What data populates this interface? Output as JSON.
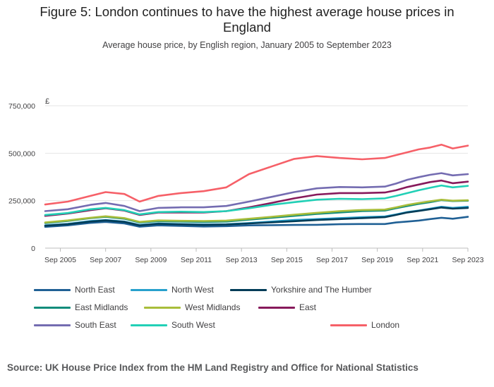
{
  "title": "Figure 5: London continues to have the highest average house prices in England",
  "subtitle": "Average house price, by English region, January 2005 to September 2023",
  "source": "Source: UK House Price Index from the HM Land Registry and Office for National Statistics",
  "chart_data": {
    "type": "line",
    "y_unit_label": "£",
    "ylim": [
      0,
      750000
    ],
    "y_ticks": [
      0,
      250000,
      500000,
      750000
    ],
    "y_tick_labels": [
      "0",
      "250,000",
      "500,000",
      "750,000"
    ],
    "xlim": [
      2005.0,
      2023.67
    ],
    "x_ticks": [
      2005.67,
      2007.67,
      2009.67,
      2011.67,
      2013.67,
      2015.67,
      2017.67,
      2019.67,
      2021.67,
      2023.67
    ],
    "x_tick_labels": [
      "Sep 2005",
      "Sep 2007",
      "Sep 2009",
      "Sep 2011",
      "Sep 2013",
      "Sep 2015",
      "Sep 2017",
      "Sep 2019",
      "Sep 2021",
      "Sep 2023"
    ],
    "grid": "horizontal",
    "legend_position": "bottom",
    "x": [
      2005.0,
      2006.0,
      2007.0,
      2007.67,
      2008.5,
      2009.17,
      2010.0,
      2011.0,
      2012.0,
      2013.0,
      2014.0,
      2015.0,
      2016.0,
      2017.0,
      2018.0,
      2019.0,
      2020.0,
      2020.5,
      2021.0,
      2021.5,
      2022.0,
      2022.5,
      2023.0,
      2023.67
    ],
    "series": [
      {
        "name": "North East",
        "color": "#206095",
        "values": [
          112000,
          120000,
          133000,
          138000,
          130000,
          113000,
          120000,
          117000,
          114000,
          116000,
          120000,
          121000,
          122000,
          123000,
          126000,
          127000,
          127000,
          135000,
          140000,
          145000,
          153000,
          160000,
          155000,
          165000
        ]
      },
      {
        "name": "North West",
        "color": "#27a0cc",
        "values": [
          120000,
          128000,
          143000,
          148000,
          140000,
          122000,
          130000,
          127000,
          125000,
          126000,
          132000,
          140000,
          148000,
          153000,
          158000,
          163000,
          167000,
          178000,
          190000,
          198000,
          208000,
          218000,
          212000,
          218000
        ]
      },
      {
        "name": "Yorkshire and The Humber",
        "color": "#003c57",
        "values": [
          118000,
          126000,
          140000,
          146000,
          138000,
          120000,
          128000,
          125000,
          122000,
          124000,
          130000,
          136000,
          142000,
          148000,
          153000,
          158000,
          163000,
          175000,
          188000,
          196000,
          205000,
          214000,
          208000,
          212000
        ]
      },
      {
        "name": "East Midlands",
        "color": "#118c7b",
        "values": [
          132000,
          143000,
          158000,
          165000,
          155000,
          135000,
          142000,
          140000,
          138000,
          140000,
          150000,
          160000,
          170000,
          180000,
          188000,
          195000,
          198000,
          210000,
          222000,
          233000,
          242000,
          253000,
          248000,
          250000
        ]
      },
      {
        "name": "West Midlands",
        "color": "#a8bd3a",
        "values": [
          135000,
          146000,
          160000,
          168000,
          158000,
          138000,
          146000,
          144000,
          143000,
          145000,
          155000,
          165000,
          176000,
          186000,
          195000,
          201000,
          203000,
          215000,
          228000,
          238000,
          247000,
          255000,
          250000,
          252000
        ]
      },
      {
        "name": "East",
        "color": "#871a5b",
        "values": [
          170000,
          182000,
          200000,
          210000,
          198000,
          175000,
          188000,
          188000,
          188000,
          195000,
          215000,
          238000,
          262000,
          282000,
          290000,
          290000,
          293000,
          305000,
          322000,
          335000,
          348000,
          356000,
          342000,
          350000
        ]
      },
      {
        "name": "London",
        "color": "#f66068",
        "values": [
          230000,
          245000,
          275000,
          295000,
          285000,
          245000,
          275000,
          290000,
          300000,
          320000,
          390000,
          430000,
          470000,
          485000,
          475000,
          468000,
          475000,
          490000,
          505000,
          520000,
          530000,
          545000,
          525000,
          540000
        ]
      },
      {
        "name": "South East",
        "color": "#746cb1",
        "values": [
          195000,
          205000,
          228000,
          238000,
          222000,
          195000,
          212000,
          215000,
          215000,
          222000,
          245000,
          270000,
          295000,
          315000,
          322000,
          320000,
          324000,
          340000,
          360000,
          374000,
          386000,
          395000,
          383000,
          390000
        ]
      },
      {
        "name": "South West",
        "color": "#22d0b6",
        "values": [
          175000,
          185000,
          205000,
          212000,
          200000,
          178000,
          190000,
          192000,
          190000,
          195000,
          210000,
          228000,
          242000,
          255000,
          260000,
          258000,
          262000,
          275000,
          290000,
          305000,
          318000,
          330000,
          320000,
          328000
        ]
      }
    ]
  }
}
